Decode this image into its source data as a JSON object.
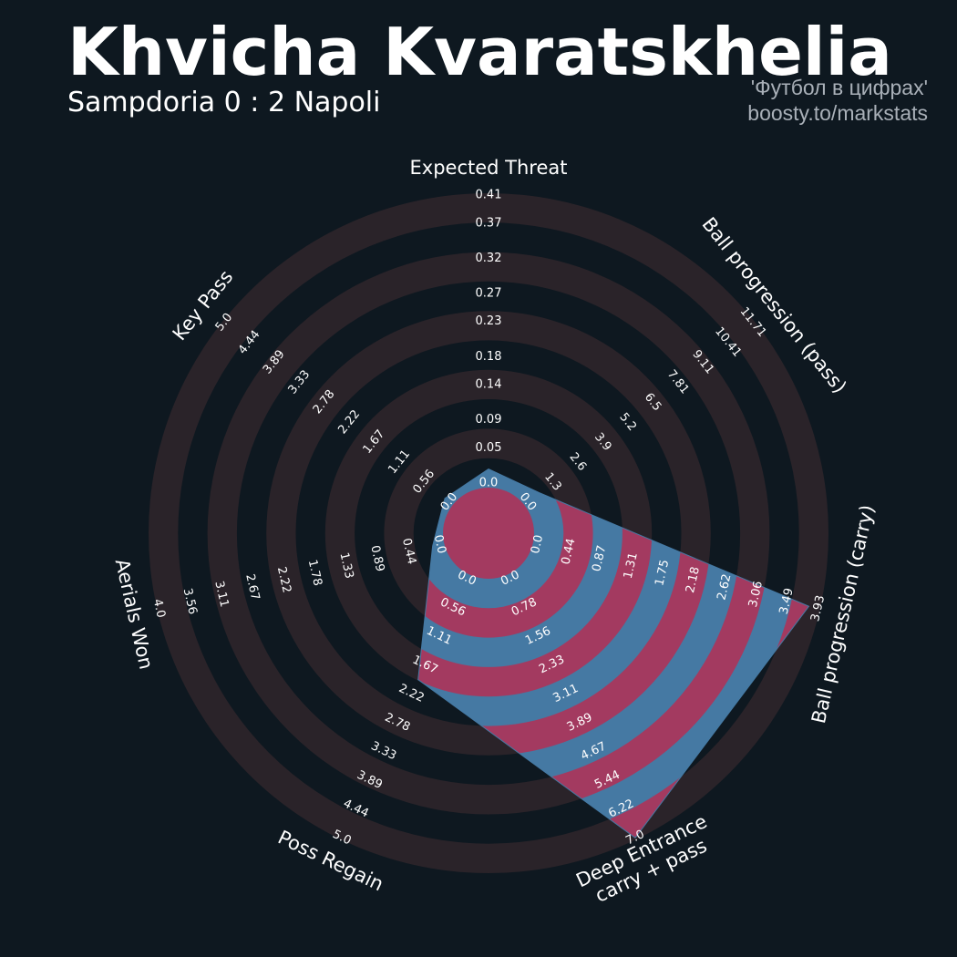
{
  "chart_data": {
    "type": "radar",
    "title": "Khvicha Kvaratskhelia",
    "subtitle": "Sampdoria 0 : 2 Napoli",
    "annotations": [
      "'Футбол в цифрах'",
      "boosty.to/markstats"
    ],
    "color": "#4579a3",
    "alt_color": "#a33a60",
    "ring_color": "#2a2329",
    "axes": [
      {
        "label": [
          "Expected Threat"
        ],
        "ticks": [
          {
            "value": 0,
            "label": "0.0"
          },
          0.05,
          0.09,
          0.14,
          0.18,
          0.23,
          0.27,
          0.32,
          0.37,
          0.41
        ]
      },
      {
        "label": [
          "Ball progression (pass)"
        ],
        "ticks": [
          {
            "value": 0,
            "label": "0.0"
          },
          1.3,
          2.6,
          3.9,
          5.2,
          6.5,
          7.81,
          9.11,
          10.41,
          11.71
        ]
      },
      {
        "label": [
          "Ball progression (carry)"
        ],
        "ticks": [
          {
            "value": 0,
            "label": "0.0"
          },
          0.44,
          0.87,
          1.31,
          1.75,
          2.18,
          2.62,
          3.06,
          3.49,
          3.93
        ]
      },
      {
        "label": [
          "Deep Entrance",
          "carry + pass"
        ],
        "ticks": [
          {
            "value": 0,
            "label": "0.0"
          },
          0.78,
          1.56,
          2.33,
          3.11,
          3.89,
          4.67,
          5.44,
          6.22,
          {
            "value": 7,
            "label": "7.0"
          }
        ]
      },
      {
        "label": [
          "Poss Regain"
        ],
        "ticks": [
          {
            "value": 0,
            "label": "0.0"
          },
          0.56,
          1.11,
          1.67,
          2.22,
          2.78,
          3.33,
          3.89,
          4.44,
          {
            "value": 5,
            "label": "5.0"
          }
        ]
      },
      {
        "label": [
          "Aerials Won"
        ],
        "ticks": [
          {
            "value": 0,
            "label": "0.0"
          },
          0.44,
          0.89,
          1.33,
          1.78,
          2.22,
          2.67,
          3.11,
          3.56,
          {
            "value": 4,
            "label": "4.0"
          }
        ]
      },
      {
        "label": [
          "Key Pass"
        ],
        "ticks": [
          {
            "value": 0,
            "label": "0.0"
          },
          0.56,
          1.11,
          1.67,
          2.22,
          2.78,
          3.33,
          3.89,
          4.44,
          {
            "value": 5,
            "label": "5.0"
          }
        ]
      }
    ],
    "values": [
      0.02,
      0.6,
      3.8,
      7.0,
      1.95,
      0.1,
      0.1
    ]
  }
}
